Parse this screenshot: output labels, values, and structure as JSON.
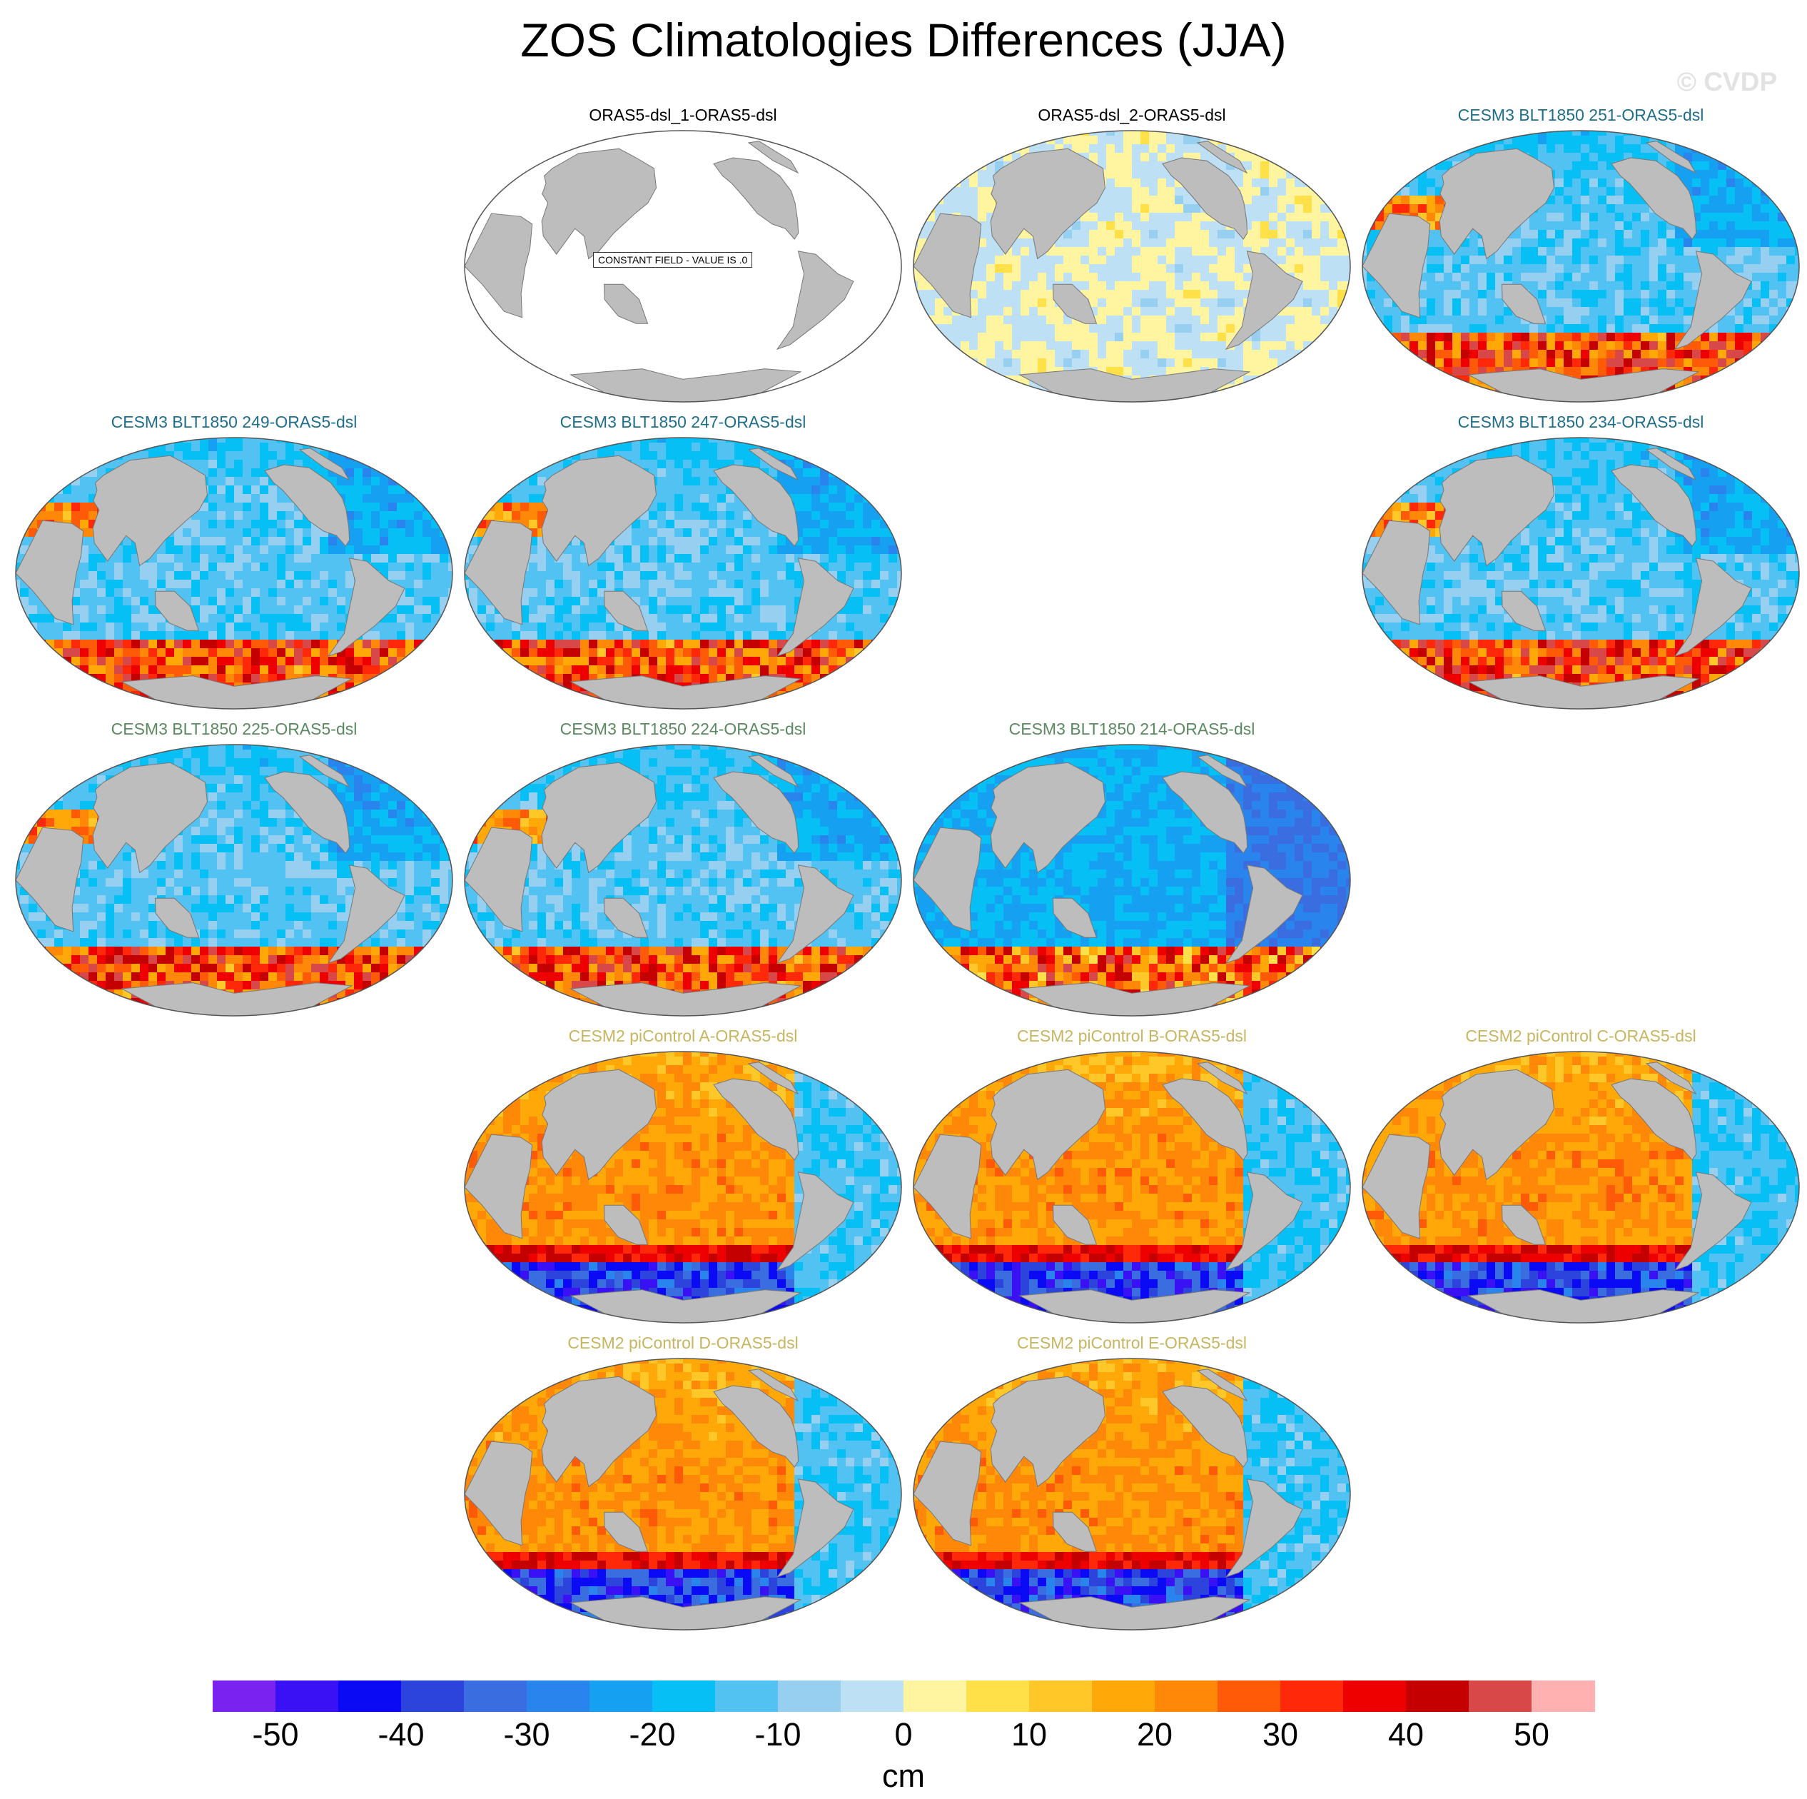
{
  "title": "ZOS Climatologies Differences (JJA)",
  "watermark": "© CVDP",
  "constant_notice": "CONSTANT FIELD - VALUE IS .0",
  "colors": {
    "title_obs": "#000000",
    "title_blt1": "#1f6e8c",
    "title_blt2": "#5b8a60",
    "title_picontrol": "#c8b560",
    "land": "#bdbdbd",
    "outline": "#555555"
  },
  "panels": [
    {
      "id": "p1",
      "title": "ORAS5-dsl_1-ORAS5-dsl",
      "group": "obs",
      "pattern": "constant",
      "row": 0,
      "col": 1
    },
    {
      "id": "p2",
      "title": "ORAS5-dsl_2-ORAS5-dsl",
      "group": "obs",
      "pattern": "near-zero",
      "row": 0,
      "col": 2
    },
    {
      "id": "p3",
      "title": "CESM3 BLT1850 251-ORAS5-dsl",
      "group": "blt1",
      "pattern": "negative-south-positive",
      "row": 0,
      "col": 3
    },
    {
      "id": "p4",
      "title": "CESM3 BLT1850 249-ORAS5-dsl",
      "group": "blt1",
      "pattern": "negative-south-positive",
      "row": 1,
      "col": 0
    },
    {
      "id": "p5",
      "title": "CESM3 BLT1850 247-ORAS5-dsl",
      "group": "blt1",
      "pattern": "negative-south-positive",
      "row": 1,
      "col": 1
    },
    {
      "id": "p6",
      "title": "CESM3 BLT1850 234-ORAS5-dsl",
      "group": "blt1",
      "pattern": "negative-south-positive",
      "row": 1,
      "col": 3
    },
    {
      "id": "p7",
      "title": "CESM3 BLT1850 225-ORAS5-dsl",
      "group": "blt2",
      "pattern": "negative-south-positive",
      "row": 2,
      "col": 0
    },
    {
      "id": "p8",
      "title": "CESM3 BLT1850 224-ORAS5-dsl",
      "group": "blt2",
      "pattern": "negative-south-positive",
      "row": 2,
      "col": 1
    },
    {
      "id": "p9",
      "title": "CESM3 BLT1850 214-ORAS5-dsl",
      "group": "blt2",
      "pattern": "negative-strong",
      "row": 2,
      "col": 2
    },
    {
      "id": "p10",
      "title": "CESM2 piControl A-ORAS5-dsl",
      "group": "picontrol",
      "pattern": "positive-south-negative",
      "row": 3,
      "col": 1
    },
    {
      "id": "p11",
      "title": "CESM2 piControl B-ORAS5-dsl",
      "group": "picontrol",
      "pattern": "positive-south-negative",
      "row": 3,
      "col": 2
    },
    {
      "id": "p12",
      "title": "CESM2 piControl C-ORAS5-dsl",
      "group": "picontrol",
      "pattern": "positive-south-negative",
      "row": 3,
      "col": 3
    },
    {
      "id": "p13",
      "title": "CESM2 piControl D-ORAS5-dsl",
      "group": "picontrol",
      "pattern": "positive-south-negative",
      "row": 4,
      "col": 1
    },
    {
      "id": "p14",
      "title": "CESM2 piControl E-ORAS5-dsl",
      "group": "picontrol",
      "pattern": "positive-south-negative",
      "row": 4,
      "col": 2
    }
  ],
  "colorbar": {
    "unit": "cm",
    "boundaries": [
      -50,
      -45,
      -40,
      -35,
      -30,
      -25,
      -20,
      -15,
      -10,
      -5,
      0,
      5,
      10,
      15,
      20,
      25,
      30,
      35,
      40,
      45,
      50
    ],
    "tick_labels": [
      "-50",
      "-40",
      "-30",
      "-20",
      "-10",
      "0",
      "10",
      "20",
      "30",
      "40",
      "50"
    ],
    "colors": [
      "#7a22f0",
      "#3a10f5",
      "#0a0af5",
      "#2c44dc",
      "#3a6ee0",
      "#2a84ee",
      "#16a0f2",
      "#06bff4",
      "#52c2f2",
      "#96cff0",
      "#bde0f5",
      "#fff4a0",
      "#ffe048",
      "#ffc828",
      "#ffa808",
      "#ff8808",
      "#ff5a08",
      "#ff2808",
      "#ee0000",
      "#c40000",
      "#d84848",
      "#ffb0b0"
    ]
  }
}
